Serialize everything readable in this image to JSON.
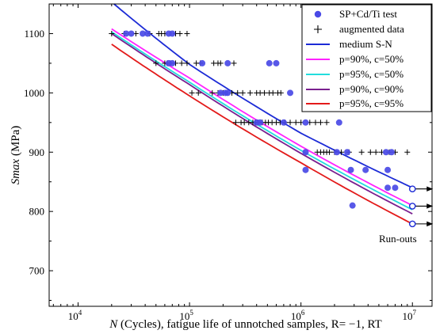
{
  "chart_data": {
    "type": "scatter",
    "xlabel_italic": "N",
    "xlabel_rest": " (Cycles), fatigue life of unnotched samples, R= −1, RT",
    "ylabel_italic": "Smax",
    "ylabel_rest": " (MPa)",
    "x_scale": "log",
    "xlim": [
      5500,
      15000000
    ],
    "ylim": [
      640,
      1150
    ],
    "x_ticks": [
      {
        "value": 10000,
        "base": "10",
        "exp": "4"
      },
      {
        "value": 100000,
        "base": "10",
        "exp": "5"
      },
      {
        "value": 1000000,
        "base": "10",
        "exp": "6"
      },
      {
        "value": 10000000,
        "base": "10",
        "exp": "7"
      }
    ],
    "y_ticks": [
      700,
      800,
      900,
      1000,
      1100
    ],
    "grid": false,
    "legend_position": "top-right",
    "annotation": "Run-outs",
    "test_points": {
      "name": "SP+Cd/Ti test",
      "color": "#4a4ae6",
      "points": [
        [
          27000,
          1100
        ],
        [
          30000,
          1100
        ],
        [
          38000,
          1100
        ],
        [
          42000,
          1100
        ],
        [
          65000,
          1100
        ],
        [
          70000,
          1100
        ],
        [
          65000,
          1050
        ],
        [
          70000,
          1050
        ],
        [
          130000,
          1050
        ],
        [
          220000,
          1050
        ],
        [
          520000,
          1050
        ],
        [
          600000,
          1050
        ],
        [
          190000,
          1000
        ],
        [
          210000,
          1000
        ],
        [
          220000,
          1000
        ],
        [
          800000,
          1000
        ],
        [
          400000,
          950
        ],
        [
          430000,
          950
        ],
        [
          700000,
          950
        ],
        [
          1100000,
          950
        ],
        [
          2200000,
          950
        ],
        [
          1100000,
          900
        ],
        [
          2100000,
          900
        ],
        [
          2600000,
          900
        ],
        [
          5800000,
          900
        ],
        [
          6500000,
          900
        ],
        [
          1100000,
          870
        ],
        [
          2800000,
          870
        ],
        [
          3800000,
          870
        ],
        [
          6000000,
          870
        ],
        [
          6000000,
          840
        ],
        [
          7000000,
          840
        ],
        [
          2900000,
          810
        ]
      ]
    },
    "augmented": {
      "name": "augmented data",
      "color": "#000000",
      "points": [
        [
          20000,
          1100
        ],
        [
          26000,
          1100
        ],
        [
          33000,
          1100
        ],
        [
          44000,
          1100
        ],
        [
          53000,
          1100
        ],
        [
          56000,
          1100
        ],
        [
          60000,
          1100
        ],
        [
          75000,
          1100
        ],
        [
          82000,
          1100
        ],
        [
          95000,
          1100
        ],
        [
          50000,
          1050
        ],
        [
          60000,
          1050
        ],
        [
          63000,
          1050
        ],
        [
          67000,
          1050
        ],
        [
          75000,
          1050
        ],
        [
          85000,
          1050
        ],
        [
          95000,
          1050
        ],
        [
          115000,
          1050
        ],
        [
          125000,
          1050
        ],
        [
          165000,
          1050
        ],
        [
          180000,
          1050
        ],
        [
          190000,
          1050
        ],
        [
          250000,
          1050
        ],
        [
          105000,
          1000
        ],
        [
          120000,
          1000
        ],
        [
          160000,
          1000
        ],
        [
          180000,
          1000
        ],
        [
          200000,
          1000
        ],
        [
          240000,
          1000
        ],
        [
          270000,
          1000
        ],
        [
          300000,
          1000
        ],
        [
          350000,
          1000
        ],
        [
          400000,
          1000
        ],
        [
          430000,
          1000
        ],
        [
          470000,
          1000
        ],
        [
          520000,
          1000
        ],
        [
          560000,
          1000
        ],
        [
          620000,
          1000
        ],
        [
          660000,
          1000
        ],
        [
          260000,
          950
        ],
        [
          290000,
          950
        ],
        [
          310000,
          950
        ],
        [
          340000,
          950
        ],
        [
          370000,
          950
        ],
        [
          390000,
          950
        ],
        [
          410000,
          950
        ],
        [
          450000,
          950
        ],
        [
          480000,
          950
        ],
        [
          510000,
          950
        ],
        [
          550000,
          950
        ],
        [
          600000,
          950
        ],
        [
          650000,
          950
        ],
        [
          720000,
          950
        ],
        [
          800000,
          950
        ],
        [
          900000,
          950
        ],
        [
          1000000,
          950
        ],
        [
          1200000,
          950
        ],
        [
          1350000,
          950
        ],
        [
          1500000,
          950
        ],
        [
          1700000,
          950
        ],
        [
          1400000,
          900
        ],
        [
          1500000,
          900
        ],
        [
          1600000,
          900
        ],
        [
          1700000,
          900
        ],
        [
          1800000,
          900
        ],
        [
          2000000,
          900
        ],
        [
          2300000,
          900
        ],
        [
          2700000,
          900
        ],
        [
          3500000,
          900
        ],
        [
          4200000,
          900
        ],
        [
          4700000,
          900
        ],
        [
          5300000,
          900
        ],
        [
          6200000,
          900
        ],
        [
          7000000,
          900
        ],
        [
          9000000,
          900
        ]
      ]
    },
    "curves": [
      {
        "name": "medium S-N",
        "color": "#1c2bd6",
        "points": [
          [
            21000,
            1150
          ],
          [
            100000,
            1048
          ],
          [
            1000000,
            932
          ],
          [
            10000000,
            840
          ]
        ]
      },
      {
        "name": "p=90%, c=50%",
        "color": "#ff22ff",
        "points": [
          [
            20000,
            1108
          ],
          [
            100000,
            1025
          ],
          [
            1000000,
            910
          ],
          [
            10000000,
            810
          ]
        ]
      },
      {
        "name": "p=95%, c=50%",
        "color": "#22dddd",
        "points": [
          [
            20000,
            1103
          ],
          [
            100000,
            1018
          ],
          [
            1000000,
            903
          ],
          [
            10000000,
            803
          ]
        ]
      },
      {
        "name": "p=90%, c=90%",
        "color": "#7a1f8f",
        "points": [
          [
            20000,
            1100
          ],
          [
            100000,
            1014
          ],
          [
            1000000,
            898
          ],
          [
            10000000,
            796
          ]
        ]
      },
      {
        "name": "p=95%, c=95%",
        "color": "#e31a1a",
        "points": [
          [
            20000,
            1082
          ],
          [
            100000,
            995
          ],
          [
            1000000,
            882
          ],
          [
            10000000,
            779
          ]
        ]
      }
    ],
    "runouts": [
      [
        10000000,
        838
      ],
      [
        10000000,
        809
      ],
      [
        10000000,
        779
      ]
    ]
  }
}
